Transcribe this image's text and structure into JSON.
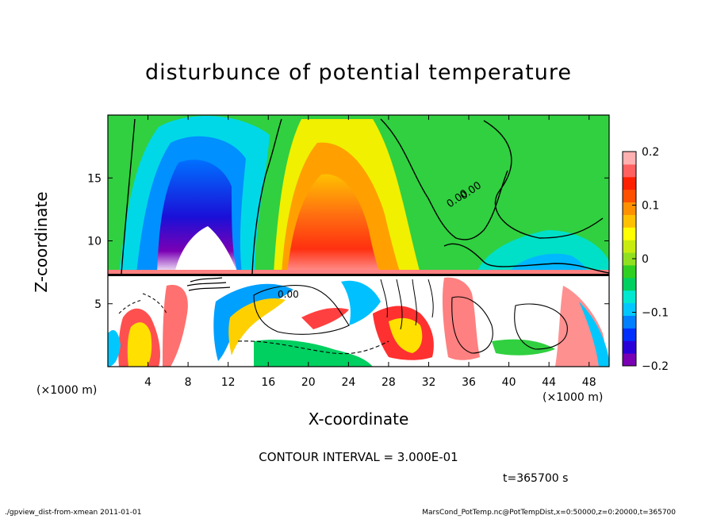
{
  "chart_data": {
    "type": "heatmap",
    "title": "disturbunce of potential temperature",
    "xlabel": "X-coordinate",
    "ylabel": "Z-coordinate",
    "x_unit_label": "(×1000 m)",
    "xlim": [
      0,
      50
    ],
    "ylim": [
      0,
      20
    ],
    "x_ticks": [
      4,
      8,
      12,
      16,
      20,
      24,
      28,
      32,
      36,
      40,
      44,
      48
    ],
    "x_tick_labels": [
      "4",
      "8",
      "12",
      "16",
      "20",
      "24",
      "28",
      "32",
      "36",
      "40",
      "44",
      "48"
    ],
    "y_ticks": [
      5,
      10,
      15
    ],
    "y_tick_labels": [
      "5",
      "10",
      "15"
    ],
    "colorbar": {
      "range": [
        -0.2,
        0.2
      ],
      "ticks": [
        0.2,
        0.1,
        0,
        -0.1,
        -0.2
      ],
      "tick_labels": [
        "0.2",
        "0.1",
        "0",
        "−0.1",
        "−0.2"
      ],
      "colors": [
        "#7a00b4",
        "#2a00d8",
        "#0030ff",
        "#0080ff",
        "#00c8ff",
        "#00e8d0",
        "#00d060",
        "#30d020",
        "#90e020",
        "#c8ec10",
        "#ffff00",
        "#ffc000",
        "#ff9000",
        "#ff5000",
        "#ff2000",
        "#ff6060",
        "#ffb0b0"
      ]
    },
    "contour_interval_text": "CONTOUR INTERVAL = 3.000E-01",
    "contour_label": "0.00",
    "time_text": "t=365700 s"
  },
  "footer": {
    "left": "./gpview_dist-from-xmean 2011-01-01",
    "right": "MarsCond_PotTemp.nc@PotTempDist,x=0:50000,z=0:20000,t=365700"
  }
}
